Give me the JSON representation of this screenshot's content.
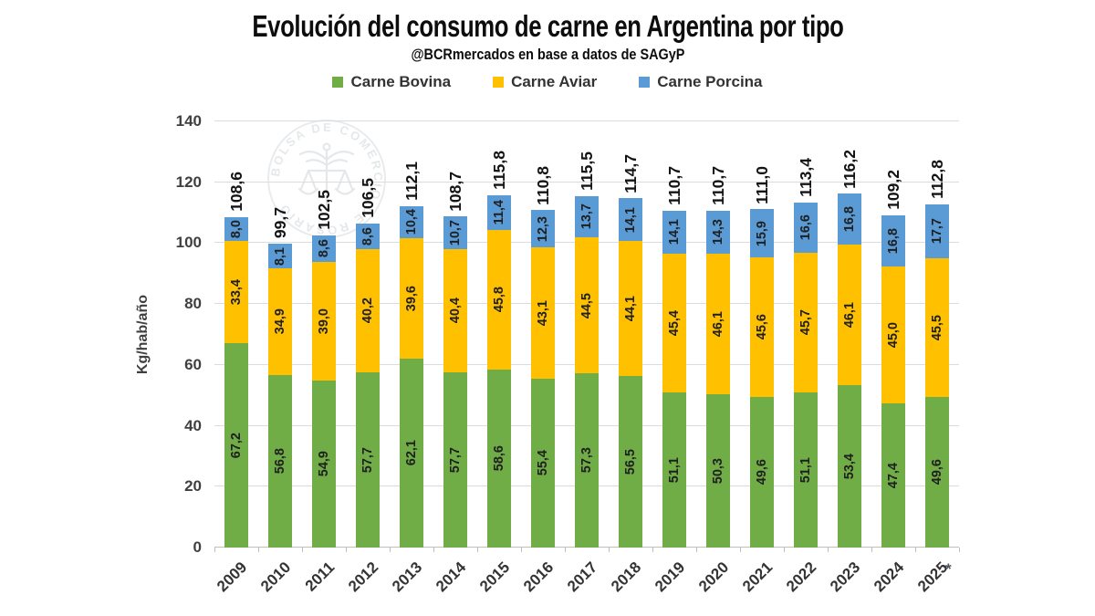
{
  "header": {
    "title": "Evolución del consumo de carne en Argentina por tipo",
    "subtitle": "@BCRmercados en base a datos de SAGyP"
  },
  "watermark": {
    "seal_text": "BOLSA DE COMERCIO DE ROSARIO"
  },
  "footnote": "*",
  "chart_data": {
    "type": "bar",
    "stacked": true,
    "title": "Evolución del consumo de carne en Argentina por tipo",
    "subtitle": "@BCRmercados en base a datos de SAGyP",
    "ylabel": "Kg/hab/año",
    "ylim": [
      0,
      140
    ],
    "yticks": [
      0,
      20,
      40,
      60,
      80,
      100,
      120,
      140
    ],
    "grid": true,
    "legend_position": "top",
    "decimal_separator": ",",
    "categories": [
      "2009",
      "2010",
      "2011",
      "2012",
      "2013",
      "2014",
      "2015",
      "2016",
      "2017",
      "2018",
      "2019",
      "2020",
      "2021",
      "2022",
      "2023",
      "2024",
      "2025"
    ],
    "series": [
      {
        "name": "Carne Bovina",
        "color": "#70AD47",
        "values": [
          67.2,
          56.8,
          54.9,
          57.7,
          62.1,
          57.7,
          58.6,
          55.4,
          57.3,
          56.5,
          51.1,
          50.3,
          49.6,
          51.1,
          53.4,
          47.4,
          49.6
        ]
      },
      {
        "name": "Carne Aviar",
        "color": "#FFC000",
        "values": [
          33.4,
          34.9,
          39.0,
          40.2,
          39.6,
          40.4,
          45.8,
          43.1,
          44.5,
          44.1,
          45.4,
          46.1,
          45.6,
          45.7,
          46.1,
          45.0,
          45.5
        ]
      },
      {
        "name": "Carne Porcina",
        "color": "#5B9BD5",
        "values": [
          8.0,
          8.1,
          8.6,
          8.6,
          10.4,
          10.7,
          11.4,
          12.3,
          13.7,
          14.1,
          14.1,
          14.3,
          15.9,
          16.6,
          16.8,
          16.8,
          17.7
        ]
      }
    ],
    "totals": [
      108.6,
      99.7,
      102.5,
      106.5,
      112.1,
      108.7,
      115.8,
      110.8,
      115.5,
      114.7,
      110.7,
      110.7,
      111.0,
      113.4,
      116.2,
      109.2,
      112.8
    ]
  }
}
